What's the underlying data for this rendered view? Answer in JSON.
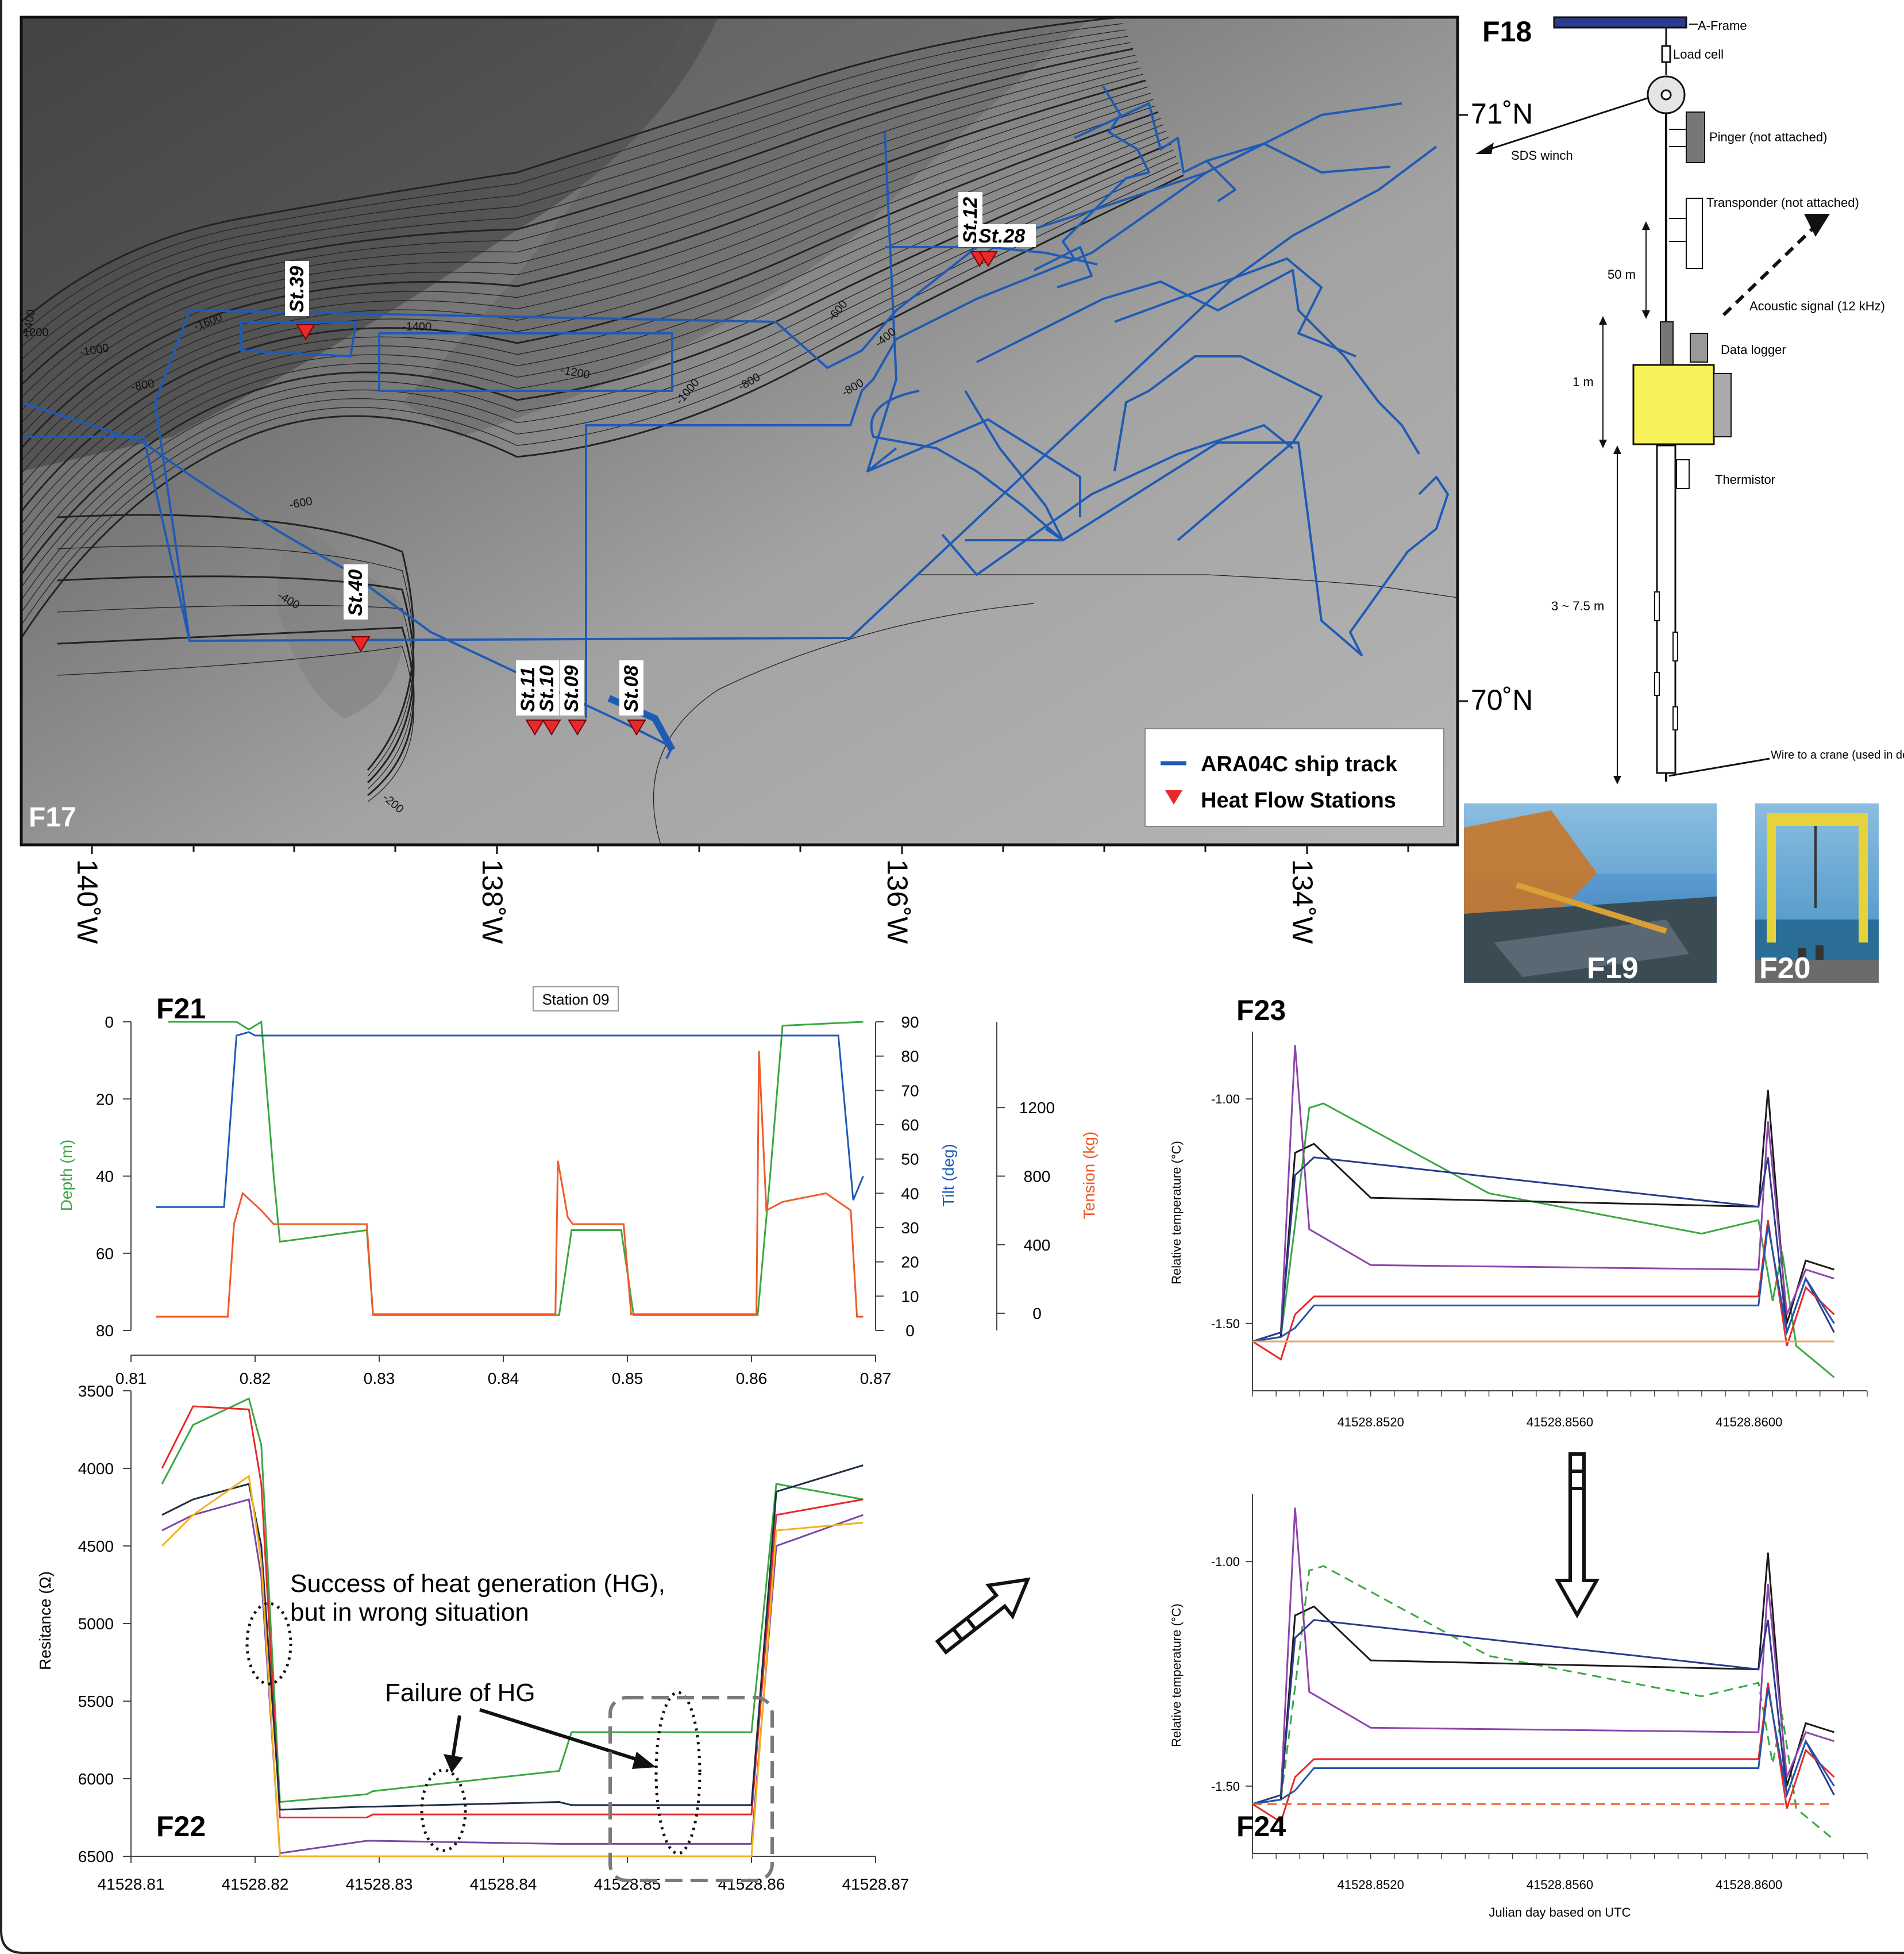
{
  "colors": {
    "track": "#1f5bb5",
    "station": "#e8292c",
    "depth": "#3aa843",
    "tilt": "#1f5bb5",
    "tension": "#f05a28",
    "map_bg": "#9a9a9a"
  },
  "f17": {
    "label": "F17",
    "lat_labels": [
      "71˚N",
      "70˚N"
    ],
    "lon_labels": [
      "140˚W",
      "138˚W",
      "136˚W",
      "134˚W"
    ],
    "stations": [
      "St.39",
      "St.12",
      "St.28",
      "St.40",
      "St.11",
      "St.10",
      "St.09",
      "St.08"
    ],
    "contours": [
      "-1400",
      "1200",
      "-1000",
      "-800",
      "-1600",
      "-1400",
      "-1200",
      "-1000",
      "-800",
      "-600",
      "-400",
      "-200",
      "-600",
      "-800",
      "-400",
      "-1000",
      "-600",
      "-400",
      "-200"
    ],
    "legend": {
      "track": "ARA04C ship track",
      "stations": "Heat Flow Stations"
    }
  },
  "f18": {
    "label": "F18",
    "parts": [
      "A-Frame",
      "Load cell",
      "Pinger (not attached)",
      "SDS winch",
      "Transponder (not attached)",
      "50 m",
      "Acoustic signal (12 kHz)",
      "Data logger",
      "1 m",
      "Thermistor",
      "3 ~ 7.5 m",
      "Wire to a crane (used in deploying)"
    ]
  },
  "f19": {
    "label": "F19"
  },
  "f20": {
    "label": "F20"
  },
  "f21": {
    "label": "F21",
    "title": "Station 09",
    "ylabel_depth": "Depth (m)",
    "ylabel_tilt": "Tilt (deg)",
    "ylabel_tension": "Tension (kg)",
    "depth_ticks": [
      "0",
      "20",
      "40",
      "60",
      "80"
    ],
    "tilt_ticks": [
      "90",
      "80",
      "70",
      "60",
      "50",
      "40",
      "30",
      "20",
      "10",
      "0"
    ],
    "tension_ticks": [
      "1200",
      "800",
      "400",
      "0"
    ],
    "x_ticks": [
      "0.81",
      "0.82",
      "0.83",
      "0.84",
      "0.85",
      "0.86",
      "0.87"
    ]
  },
  "f22": {
    "label": "F22",
    "ylabel": "Resitance (Ω)",
    "y_ticks": [
      "3500",
      "4000",
      "4500",
      "5000",
      "5500",
      "6000",
      "6500"
    ],
    "x_ticks": [
      "41528.81",
      "41528.82",
      "41528.83",
      "41528.84",
      "41528.85",
      "41528.86",
      "41528.87"
    ],
    "annotation_success": [
      "Success of heat generation (HG),",
      "but in wrong situation"
    ],
    "annotation_failure": "Failure of HG"
  },
  "f23": {
    "label": "F23",
    "ylabel": "Relative temperature (°C)",
    "y_ticks": [
      "-1.00",
      "-1.50"
    ],
    "x_ticks": [
      "41528.8520",
      "41528.8560",
      "41528.8600"
    ]
  },
  "f24": {
    "label": "F24",
    "ylabel": "Relative temperature (°C)",
    "y_ticks": [
      "-1.00",
      "-1.50"
    ],
    "x_ticks": [
      "41528.8520",
      "41528.8560",
      "41528.8600"
    ],
    "xlabel": "Julian day based on UTC"
  },
  "chart_data": [
    {
      "type": "line",
      "title": "Station 09",
      "xlabel": "",
      "xlim": [
        0.81,
        0.87
      ],
      "series": [
        {
          "axis": "Depth (m)",
          "ylim": [
            80,
            0
          ],
          "x": [
            0.813,
            0.8185,
            0.8195,
            0.8205,
            0.8215,
            0.822,
            0.829,
            0.8295,
            0.8445,
            0.8455,
            0.8495,
            0.8505,
            0.8605,
            0.8615,
            0.8625,
            0.869
          ],
          "values": [
            0,
            0,
            2,
            0,
            40,
            57,
            54,
            76,
            76,
            54,
            54,
            76,
            76,
            40,
            1,
            0
          ]
        },
        {
          "axis": "Tilt (deg)",
          "ylim": [
            0,
            90
          ],
          "x": [
            0.812,
            0.8175,
            0.8185,
            0.8195,
            0.82,
            0.83,
            0.84,
            0.85,
            0.86,
            0.867,
            0.8682,
            0.869
          ],
          "values": [
            36,
            36,
            86,
            87,
            86,
            86,
            86,
            86,
            86,
            86,
            38,
            45
          ]
        },
        {
          "axis": "Tension (kg)",
          "ylim": [
            -100,
            1700
          ],
          "x": [
            0.812,
            0.8178,
            0.8183,
            0.819,
            0.8205,
            0.8215,
            0.829,
            0.8295,
            0.8442,
            0.8444,
            0.8452,
            0.8456,
            0.8497,
            0.8503,
            0.8604,
            0.8606,
            0.8612,
            0.8625,
            0.866,
            0.868,
            0.8685,
            0.869
          ],
          "values": [
            -20,
            -20,
            520,
            700,
            600,
            520,
            520,
            -5,
            -5,
            890,
            560,
            520,
            520,
            -5,
            -5,
            1530,
            600,
            650,
            700,
            600,
            -20,
            -20
          ]
        }
      ]
    },
    {
      "type": "line",
      "ylabel": "Resitance (Ω)",
      "xlim": [
        41528.81,
        41528.87
      ],
      "ylim": [
        6500,
        3500
      ],
      "series": [
        {
          "values": [
            4100,
            3720,
            3550,
            3850,
            6150,
            6100,
            6080,
            5950,
            5700,
            5700,
            4100,
            4200
          ]
        },
        {
          "values": [
            4000,
            3600,
            3620,
            4100,
            6250,
            6250,
            6230,
            6230,
            6230,
            6230,
            4300,
            4200
          ]
        },
        {
          "values": [
            4300,
            4200,
            4100,
            4500,
            6200,
            6180,
            6180,
            6150,
            6170,
            6170,
            4150,
            3980
          ]
        },
        {
          "values": [
            4400,
            4300,
            4200,
            4700,
            6480,
            6400,
            6400,
            6420,
            6420,
            6420,
            4500,
            4300
          ]
        },
        {
          "values": [
            4500,
            4300,
            4050,
            4600,
            6500,
            6500,
            6500,
            6500,
            6500,
            6500,
            4400,
            4350
          ]
        }
      ]
    },
    {
      "type": "line",
      "ylabel": "Relative temperature (°C)",
      "xlim": [
        41528.8495,
        41528.8625
      ],
      "ylim": [
        -1.65,
        -0.85
      ],
      "series": [
        {
          "x": [
            41528.8495,
            41528.8501,
            41528.8504,
            41528.8507,
            41528.851,
            41528.8545,
            41528.859,
            41528.8602,
            41528.8605,
            41528.8607,
            41528.861,
            41528.8618
          ],
          "values": [
            -1.54,
            -1.53,
            -1.28,
            -1.02,
            -1.01,
            -1.21,
            -1.3,
            -1.27,
            -1.45,
            -1.34,
            -1.55,
            -1.62
          ]
        },
        {
          "x": [
            41528.8495,
            41528.8501,
            41528.8504,
            41528.8508,
            41528.852,
            41528.8602,
            41528.8604,
            41528.8608,
            41528.8612,
            41528.8618
          ],
          "values": [
            -1.54,
            -1.53,
            -1.12,
            -1.1,
            -1.22,
            -1.24,
            -0.98,
            -1.5,
            -1.36,
            -1.38
          ]
        },
        {
          "x": [
            41528.8495,
            41528.8501,
            41528.8504,
            41528.8507,
            41528.852,
            41528.8602,
            41528.8604,
            41528.8608,
            41528.8612,
            41528.8618
          ],
          "values": [
            -1.54,
            -1.52,
            -0.88,
            -1.29,
            -1.37,
            -1.38,
            -1.05,
            -1.48,
            -1.38,
            -1.4
          ]
        },
        {
          "x": [
            41528.8495,
            41528.8501,
            41528.8504,
            41528.8508,
            41528.8602,
            41528.8604,
            41528.8608,
            41528.8612,
            41528.8618
          ],
          "values": [
            -1.54,
            -1.52,
            -1.17,
            -1.13,
            -1.24,
            -1.13,
            -1.52,
            -1.4,
            -1.52
          ]
        },
        {
          "x": [
            41528.8495,
            41528.8501,
            41528.8504,
            41528.8508,
            41528.8602,
            41528.8604,
            41528.8608,
            41528.8612,
            41528.8618
          ],
          "values": [
            -1.54,
            -1.58,
            -1.48,
            -1.44,
            -1.44,
            -1.27,
            -1.55,
            -1.42,
            -1.48
          ]
        },
        {
          "x": [
            41528.8495,
            41528.8501,
            41528.8504,
            41528.8508,
            41528.8602,
            41528.8604,
            41528.8608,
            41528.8612,
            41528.8618
          ],
          "values": [
            -1.54,
            -1.53,
            -1.51,
            -1.46,
            -1.46,
            -1.28,
            -1.52,
            -1.4,
            -1.5
          ]
        },
        {
          "x": [
            41528.8495,
            41528.8618
          ],
          "values": [
            -1.54,
            -1.54
          ]
        }
      ]
    }
  ]
}
